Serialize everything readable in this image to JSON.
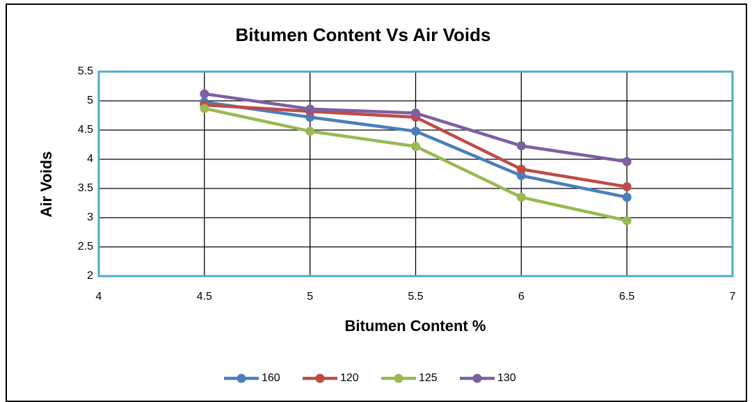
{
  "chart_data": {
    "type": "line",
    "title": "Bitumen Content Vs Air Voids",
    "x_label": "Bitumen Content %",
    "y_label": "Air Voids",
    "x": [
      4.5,
      5,
      5.5,
      6,
      6.5
    ],
    "series": [
      {
        "name": "160",
        "color": "#4a7ebb",
        "values": [
          4.98,
          4.72,
          4.48,
          3.72,
          3.35
        ]
      },
      {
        "name": "120",
        "color": "#be4b48",
        "values": [
          4.93,
          4.82,
          4.72,
          3.83,
          3.53
        ]
      },
      {
        "name": "125",
        "color": "#98b954",
        "values": [
          4.87,
          4.48,
          4.22,
          3.35,
          2.95
        ]
      },
      {
        "name": "130",
        "color": "#7d60a0",
        "values": [
          5.12,
          4.86,
          4.79,
          4.23,
          3.96
        ]
      }
    ],
    "xlim": [
      4,
      7
    ],
    "xticks": [
      4,
      4.5,
      5,
      5.5,
      6,
      6.5,
      7
    ],
    "ylim": [
      2,
      5.5
    ],
    "yticks": [
      2,
      2.5,
      3,
      3.5,
      4,
      4.5,
      5,
      5.5
    ],
    "grid": true,
    "legend": "bottom"
  }
}
